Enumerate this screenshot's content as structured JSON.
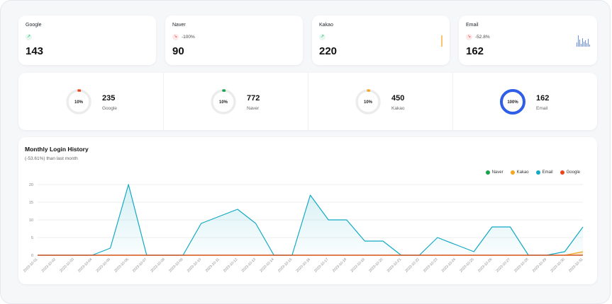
{
  "stats": [
    {
      "name": "Google",
      "trend": "up",
      "pct": "",
      "value": "143",
      "spark": "none"
    },
    {
      "name": "Naver",
      "trend": "down",
      "pct": "-100%",
      "value": "90",
      "spark": "none"
    },
    {
      "name": "Kakao",
      "trend": "up",
      "pct": "",
      "value": "220",
      "spark": "line"
    },
    {
      "name": "Email",
      "trend": "down",
      "pct": "-52.8%",
      "value": "162",
      "spark": "bars"
    }
  ],
  "donuts": [
    {
      "percent": "10%",
      "fraction": 0.1,
      "count": "235",
      "label": "Google",
      "color": "#e8461e"
    },
    {
      "percent": "10%",
      "fraction": 0.1,
      "count": "772",
      "label": "Naver",
      "color": "#17a34a"
    },
    {
      "percent": "10%",
      "fraction": 0.1,
      "count": "450",
      "label": "Kakao",
      "color": "#f5a524"
    },
    {
      "percent": "100%",
      "fraction": 1.0,
      "count": "162",
      "label": "Email",
      "color": "#2f5ee8"
    }
  ],
  "chart": {
    "title": "Monthly Login History",
    "subtitle": "(-53.61%) than last month"
  },
  "chart_data": {
    "type": "area",
    "x": [
      "2023-10-01",
      "2023-10-02",
      "2023-10-03",
      "2023-10-04",
      "2023-10-05",
      "2023-10-06",
      "2023-10-07",
      "2023-10-08",
      "2023-10-09",
      "2023-10-10",
      "2023-10-11",
      "2023-10-12",
      "2023-10-13",
      "2023-10-14",
      "2023-10-15",
      "2023-10-16",
      "2023-10-17",
      "2023-10-18",
      "2023-10-19",
      "2023-10-20",
      "2023-10-21",
      "2023-10-22",
      "2023-10-23",
      "2023-10-24",
      "2023-10-25",
      "2023-10-26",
      "2023-10-27",
      "2023-10-28",
      "2023-10-29",
      "2023-10-30",
      "2023-10-31"
    ],
    "ylim": [
      0,
      20
    ],
    "yticks": [
      0,
      5,
      10,
      15,
      20
    ],
    "grid": true,
    "legend_position": "top-right",
    "series": [
      {
        "name": "Naver",
        "color": "#17a34a",
        "values": [
          0,
          0,
          0,
          0,
          0,
          0,
          0,
          0,
          0,
          0,
          0,
          0,
          0,
          0,
          0,
          0,
          0,
          0,
          0,
          0,
          0,
          0,
          0,
          0,
          0,
          0,
          0,
          0,
          0,
          0,
          0
        ]
      },
      {
        "name": "Kakao",
        "color": "#f5a524",
        "values": [
          0,
          0,
          0,
          0,
          0,
          0,
          0,
          0,
          0,
          0,
          0,
          0,
          0,
          0,
          0,
          0,
          0,
          0,
          0,
          0,
          0,
          0,
          0,
          0,
          0,
          0,
          0,
          0,
          0,
          0,
          1
        ]
      },
      {
        "name": "Email",
        "color": "#12a9c3",
        "values": [
          0,
          0,
          0,
          0,
          2,
          20,
          0,
          0,
          0,
          9,
          11,
          13,
          9,
          0,
          0,
          17,
          10,
          10,
          4,
          4,
          0,
          0,
          5,
          3,
          1,
          8,
          8,
          0,
          0,
          1,
          8
        ]
      },
      {
        "name": "Google",
        "color": "#e8461e",
        "values": [
          0,
          0,
          0,
          0,
          0,
          0,
          0,
          0,
          0,
          0,
          0,
          0,
          0,
          0,
          0,
          0,
          0,
          0,
          0,
          0,
          0,
          0,
          0,
          0,
          0,
          0,
          0,
          0,
          0,
          0,
          0
        ]
      }
    ]
  }
}
